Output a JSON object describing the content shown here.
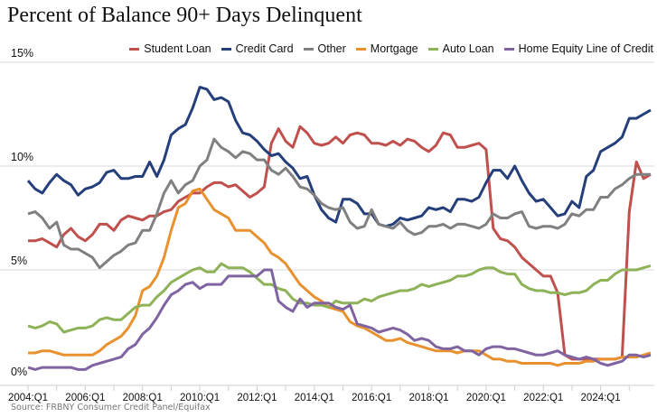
{
  "title": "Percent of Balance 90+ Days Delinquent",
  "source": "Source: FRBNY Consumer Credit Panel/Equifax",
  "chart_data": {
    "type": "line",
    "title": "Percent of Balance 90+ Days Delinquent",
    "xlabel": "",
    "ylabel": "",
    "ylim": [
      0,
      15
    ],
    "y_ticks": [
      "0%",
      "5%",
      "10%",
      "15%"
    ],
    "y_tick_values": [
      0,
      5,
      10,
      15
    ],
    "x_tick_labels": [
      "2004:Q1",
      "2006:Q1",
      "2008:Q1",
      "2010:Q1",
      "2012:Q1",
      "2014:Q1",
      "2016:Q1",
      "2018:Q1",
      "2020:Q1",
      "2022:Q1",
      "2024:Q1"
    ],
    "grid": "horizontal",
    "legend_position": "top-right",
    "categories": [
      "2004:Q1",
      "2004:Q2",
      "2004:Q3",
      "2004:Q4",
      "2005:Q1",
      "2005:Q2",
      "2005:Q3",
      "2005:Q4",
      "2006:Q1",
      "2006:Q2",
      "2006:Q3",
      "2006:Q4",
      "2007:Q1",
      "2007:Q2",
      "2007:Q3",
      "2007:Q4",
      "2008:Q1",
      "2008:Q2",
      "2008:Q3",
      "2008:Q4",
      "2009:Q1",
      "2009:Q2",
      "2009:Q3",
      "2009:Q4",
      "2010:Q1",
      "2010:Q2",
      "2010:Q3",
      "2010:Q4",
      "2011:Q1",
      "2011:Q2",
      "2011:Q3",
      "2011:Q4",
      "2012:Q1",
      "2012:Q2",
      "2012:Q3",
      "2012:Q4",
      "2013:Q1",
      "2013:Q2",
      "2013:Q3",
      "2013:Q4",
      "2014:Q1",
      "2014:Q2",
      "2014:Q3",
      "2014:Q4",
      "2015:Q1",
      "2015:Q2",
      "2015:Q3",
      "2015:Q4",
      "2016:Q1",
      "2016:Q2",
      "2016:Q3",
      "2016:Q4",
      "2017:Q1",
      "2017:Q2",
      "2017:Q3",
      "2017:Q4",
      "2018:Q1",
      "2018:Q2",
      "2018:Q3",
      "2018:Q4",
      "2019:Q1",
      "2019:Q2",
      "2019:Q3",
      "2019:Q4",
      "2020:Q1",
      "2020:Q2",
      "2020:Q3",
      "2020:Q4",
      "2021:Q1",
      "2021:Q2",
      "2021:Q3",
      "2021:Q4",
      "2022:Q1",
      "2022:Q2",
      "2022:Q3",
      "2022:Q4",
      "2023:Q1",
      "2023:Q2",
      "2023:Q3",
      "2023:Q4",
      "2024:Q1",
      "2024:Q2",
      "2024:Q3",
      "2024:Q4",
      "2025:Q1",
      "2025:Q2",
      "2025:Q3",
      "2025:Q4"
    ],
    "series": [
      {
        "name": "Student Loan",
        "color": "#C0504D",
        "values": [
          6.4,
          6.4,
          6.5,
          6.3,
          6.1,
          6.7,
          7.0,
          6.6,
          6.4,
          6.7,
          7.2,
          7.2,
          6.9,
          7.4,
          7.6,
          7.5,
          7.4,
          7.6,
          7.6,
          7.8,
          7.9,
          8.3,
          8.5,
          8.7,
          8.7,
          9.0,
          9.2,
          9.2,
          9.0,
          9.1,
          8.8,
          8.5,
          8.7,
          9.0,
          11.1,
          11.8,
          11.2,
          10.9,
          11.9,
          11.6,
          11.1,
          11.0,
          11.1,
          11.4,
          11.1,
          11.5,
          11.6,
          11.5,
          11.1,
          11.1,
          11.0,
          11.2,
          11.0,
          11.3,
          11.2,
          10.9,
          10.7,
          11.0,
          11.6,
          11.5,
          10.9,
          10.9,
          11.0,
          11.1,
          10.8,
          7.0,
          6.5,
          6.4,
          6.1,
          5.6,
          5.3,
          5.0,
          4.7,
          4.7,
          3.9,
          0.9,
          0.7,
          0.7,
          0.7,
          0.7,
          0.7,
          0.7,
          0.7,
          0.8,
          7.8,
          10.2,
          9.4,
          9.6
        ]
      },
      {
        "name": "Credit Card",
        "color": "#243F7A",
        "values": [
          9.3,
          8.9,
          8.7,
          9.2,
          9.6,
          9.3,
          9.1,
          8.6,
          8.9,
          9.0,
          9.2,
          9.7,
          9.8,
          9.4,
          9.4,
          9.5,
          9.5,
          10.2,
          9.5,
          10.3,
          11.5,
          11.8,
          12.0,
          12.8,
          13.8,
          13.7,
          13.2,
          13.3,
          13.1,
          12.2,
          11.6,
          11.5,
          11.2,
          10.8,
          10.5,
          10.6,
          10.2,
          9.9,
          9.4,
          9.5,
          8.6,
          7.9,
          7.5,
          7.3,
          8.4,
          8.4,
          8.2,
          7.7,
          7.7,
          7.2,
          7.1,
          7.2,
          7.5,
          7.4,
          7.5,
          7.6,
          8.0,
          7.9,
          8.0,
          7.8,
          8.4,
          8.4,
          8.3,
          8.5,
          9.2,
          9.8,
          9.8,
          9.4,
          10.0,
          9.3,
          8.7,
          8.3,
          8.4,
          8.0,
          7.6,
          7.7,
          8.3,
          8.0,
          9.5,
          9.8,
          10.7,
          10.9,
          11.1,
          11.4,
          12.3,
          12.3,
          12.5,
          12.7
        ]
      },
      {
        "name": "Other",
        "color": "#808080",
        "values": [
          7.7,
          7.8,
          7.5,
          7.0,
          7.3,
          6.2,
          6.0,
          6.0,
          5.8,
          5.6,
          5.1,
          5.4,
          5.7,
          5.9,
          6.2,
          6.3,
          6.9,
          6.9,
          7.7,
          8.7,
          9.3,
          8.7,
          9.1,
          9.3,
          10.0,
          10.3,
          11.3,
          10.9,
          10.7,
          10.4,
          10.7,
          10.6,
          10.3,
          10.3,
          9.8,
          9.6,
          9.9,
          9.5,
          9.0,
          8.9,
          8.6,
          8.2,
          8.0,
          7.9,
          8.0,
          7.3,
          7.0,
          7.1,
          7.9,
          7.2,
          7.1,
          7.0,
          7.3,
          6.9,
          6.7,
          6.8,
          7.1,
          7.1,
          7.2,
          7.0,
          7.2,
          7.2,
          7.1,
          7.0,
          7.2,
          7.7,
          7.5,
          7.5,
          7.7,
          7.8,
          7.1,
          7.0,
          7.1,
          7.1,
          7.0,
          7.2,
          7.7,
          7.6,
          7.9,
          7.9,
          8.5,
          8.5,
          8.9,
          9.1,
          9.4,
          9.6,
          9.6,
          9.6
        ]
      },
      {
        "name": "Mortgage",
        "color": "#E8922F",
        "values": [
          1.0,
          1.0,
          1.1,
          1.1,
          1.0,
          0.9,
          0.9,
          0.9,
          0.9,
          0.9,
          1.1,
          1.4,
          1.6,
          1.8,
          2.2,
          2.8,
          4.0,
          4.2,
          4.7,
          5.6,
          6.9,
          8.0,
          8.2,
          8.8,
          8.9,
          8.4,
          7.9,
          7.7,
          7.5,
          6.9,
          6.9,
          6.9,
          6.6,
          6.3,
          5.8,
          5.6,
          5.3,
          4.8,
          4.3,
          4.0,
          3.7,
          3.5,
          3.2,
          3.1,
          3.0,
          2.5,
          2.3,
          2.2,
          2.0,
          1.8,
          1.6,
          1.6,
          1.7,
          1.5,
          1.4,
          1.3,
          1.2,
          1.1,
          1.1,
          1.1,
          1.0,
          1.1,
          1.1,
          1.1,
          0.9,
          0.7,
          0.7,
          0.6,
          0.6,
          0.5,
          0.5,
          0.5,
          0.5,
          0.5,
          0.4,
          0.5,
          0.5,
          0.5,
          0.6,
          0.6,
          0.7,
          0.7,
          0.7,
          0.8,
          0.8,
          0.8,
          0.9,
          1.0
        ]
      },
      {
        "name": "Auto Loan",
        "color": "#8EB257",
        "values": [
          2.3,
          2.2,
          2.3,
          2.5,
          2.4,
          2.0,
          2.1,
          2.2,
          2.2,
          2.3,
          2.6,
          2.7,
          2.6,
          2.6,
          2.9,
          3.2,
          3.3,
          3.3,
          3.7,
          4.0,
          4.4,
          4.6,
          4.8,
          5.0,
          5.1,
          4.9,
          4.9,
          5.3,
          5.1,
          5.1,
          5.1,
          4.9,
          4.6,
          4.3,
          4.3,
          4.1,
          4.0,
          3.6,
          3.4,
          3.4,
          3.3,
          3.3,
          3.2,
          3.5,
          3.4,
          3.4,
          3.4,
          3.6,
          3.5,
          3.7,
          3.8,
          3.9,
          4.0,
          4.0,
          4.1,
          4.3,
          4.2,
          4.3,
          4.4,
          4.5,
          4.7,
          4.7,
          4.8,
          5.0,
          5.1,
          5.1,
          4.9,
          4.8,
          4.8,
          4.3,
          4.1,
          4.0,
          4.0,
          3.9,
          3.9,
          3.8,
          3.9,
          3.9,
          4.0,
          4.3,
          4.5,
          4.5,
          4.8,
          5.0,
          5.0,
          5.0,
          5.1,
          5.2
        ]
      },
      {
        "name": "Home Equity Line of Credit",
        "color": "#8064A2",
        "values": [
          0.3,
          0.2,
          0.3,
          0.3,
          0.3,
          0.3,
          0.3,
          0.2,
          0.2,
          0.4,
          0.5,
          0.6,
          0.7,
          0.8,
          1.2,
          1.4,
          1.9,
          2.2,
          2.7,
          3.3,
          3.8,
          4.0,
          4.3,
          4.4,
          4.1,
          4.3,
          4.3,
          4.3,
          4.7,
          4.7,
          4.7,
          4.7,
          4.7,
          5.0,
          5.0,
          3.5,
          3.2,
          3.0,
          3.6,
          3.2,
          3.4,
          3.4,
          3.4,
          3.2,
          3.1,
          3.3,
          2.4,
          2.3,
          2.2,
          2.0,
          2.1,
          2.2,
          2.1,
          1.9,
          1.6,
          1.7,
          1.6,
          1.3,
          1.2,
          1.2,
          1.3,
          1.1,
          1.1,
          0.9,
          1.2,
          1.3,
          1.3,
          1.2,
          1.2,
          1.1,
          1.0,
          0.9,
          0.9,
          1.0,
          1.1,
          0.9,
          0.8,
          0.7,
          0.8,
          0.7,
          0.5,
          0.4,
          0.5,
          0.6,
          0.9,
          0.9,
          0.8,
          0.9
        ]
      }
    ]
  }
}
